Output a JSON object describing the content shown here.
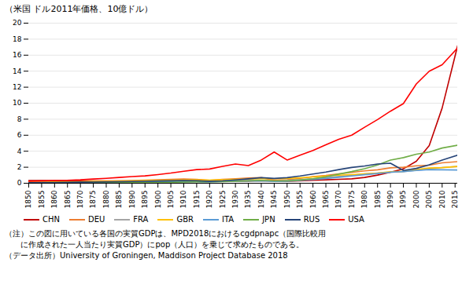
{
  "chart_data": {
    "type": "line",
    "title": "（米国 ドル2011年価格、10億ドル）",
    "annotations": [
      "（注）この図に用いている各国の実質GDPは、MPD2018におけるcgdpnapc（国際比較用",
      "　　に作成された一人当たり実質GDP）にpop（人口）を乗じて求めたものである。",
      "（データ出所）University of Groningen, Maddison Project Database 2018"
    ],
    "x": [
      1850,
      1855,
      1860,
      1865,
      1870,
      1875,
      1880,
      1885,
      1890,
      1895,
      1900,
      1905,
      1910,
      1915,
      1920,
      1925,
      1930,
      1935,
      1940,
      1945,
      1950,
      1955,
      1960,
      1965,
      1970,
      1975,
      1980,
      1985,
      1990,
      1995,
      2000,
      2005,
      2010,
      2016
    ],
    "xlim": [
      1850,
      2016
    ],
    "xticks": [
      1850,
      1855,
      1860,
      1865,
      1870,
      1875,
      1880,
      1885,
      1890,
      1895,
      1900,
      1905,
      1910,
      1915,
      1920,
      1925,
      1930,
      1935,
      1940,
      1945,
      1950,
      1955,
      1960,
      1965,
      1970,
      1975,
      1980,
      1985,
      1990,
      1995,
      2000,
      2005,
      2010,
      2015
    ],
    "ylim": [
      0,
      20
    ],
    "yticks": [
      0,
      2,
      4,
      6,
      8,
      10,
      12,
      14,
      16,
      18,
      20
    ],
    "grid": true,
    "legend": "bottom",
    "series": [
      {
        "name": "CHN",
        "color": "#c00000",
        "values": [
          0.33,
          0.33,
          0.32,
          0.31,
          0.3,
          0.29,
          0.28,
          0.28,
          0.27,
          0.26,
          0.26,
          0.27,
          0.27,
          0.26,
          0.25,
          0.26,
          0.27,
          0.28,
          0.32,
          0.28,
          0.24,
          0.3,
          0.38,
          0.43,
          0.49,
          0.55,
          0.72,
          1.02,
          1.38,
          1.8,
          2.75,
          4.7,
          9.4,
          17.2
        ]
      },
      {
        "name": "DEU",
        "color": "#ed7d31",
        "values": [
          0.09,
          0.11,
          0.13,
          0.15,
          0.17,
          0.21,
          0.25,
          0.28,
          0.33,
          0.38,
          0.44,
          0.49,
          0.54,
          0.49,
          0.37,
          0.48,
          0.55,
          0.65,
          0.7,
          0.38,
          0.43,
          0.61,
          0.82,
          0.97,
          1.18,
          1.35,
          1.55,
          1.68,
          1.92,
          2.0,
          2.18,
          2.25,
          2.55,
          2.7
        ]
      },
      {
        "name": "FRA",
        "color": "#a5a5a5",
        "values": [
          0.08,
          0.09,
          0.1,
          0.11,
          0.12,
          0.14,
          0.16,
          0.17,
          0.19,
          0.21,
          0.24,
          0.26,
          0.29,
          0.25,
          0.24,
          0.32,
          0.38,
          0.37,
          0.36,
          0.27,
          0.36,
          0.45,
          0.57,
          0.7,
          0.86,
          1.0,
          1.16,
          1.26,
          1.38,
          1.44,
          1.62,
          1.78,
          1.96,
          2.1
        ]
      },
      {
        "name": "GBR",
        "color": "#ffc000",
        "values": [
          0.13,
          0.14,
          0.16,
          0.18,
          0.2,
          0.23,
          0.25,
          0.27,
          0.3,
          0.33,
          0.36,
          0.39,
          0.42,
          0.43,
          0.39,
          0.44,
          0.48,
          0.51,
          0.57,
          0.57,
          0.6,
          0.68,
          0.79,
          0.9,
          1.01,
          1.08,
          1.18,
          1.27,
          1.45,
          1.47,
          1.71,
          1.9,
          1.95,
          2.1
        ]
      },
      {
        "name": "ITA",
        "color": "#5b9bd5",
        "values": [
          0.05,
          0.06,
          0.06,
          0.07,
          0.08,
          0.09,
          0.1,
          0.11,
          0.12,
          0.13,
          0.14,
          0.16,
          0.18,
          0.19,
          0.18,
          0.22,
          0.26,
          0.28,
          0.29,
          0.22,
          0.26,
          0.34,
          0.47,
          0.6,
          0.75,
          0.9,
          1.07,
          1.21,
          1.38,
          1.46,
          1.6,
          1.7,
          1.68,
          1.65
        ]
      },
      {
        "name": "JPN",
        "color": "#70ad47",
        "values": [
          0.04,
          0.04,
          0.04,
          0.05,
          0.05,
          0.06,
          0.07,
          0.07,
          0.08,
          0.09,
          0.1,
          0.12,
          0.14,
          0.17,
          0.18,
          0.2,
          0.24,
          0.3,
          0.37,
          0.29,
          0.3,
          0.4,
          0.57,
          0.8,
          1.14,
          1.46,
          1.82,
          2.27,
          2.9,
          3.2,
          3.62,
          3.9,
          4.4,
          4.75
        ]
      },
      {
        "name": "RUS",
        "color": "#264478",
        "values": [
          0.08,
          0.09,
          0.1,
          0.11,
          0.13,
          0.15,
          0.17,
          0.19,
          0.22,
          0.25,
          0.28,
          0.31,
          0.34,
          0.32,
          0.23,
          0.3,
          0.41,
          0.55,
          0.7,
          0.6,
          0.7,
          0.9,
          1.15,
          1.4,
          1.7,
          1.97,
          2.15,
          2.4,
          2.5,
          1.6,
          1.85,
          2.3,
          2.9,
          3.5
        ]
      },
      {
        "name": "USA",
        "color": "#ff0000",
        "values": [
          0.25,
          0.3,
          0.35,
          0.37,
          0.43,
          0.53,
          0.62,
          0.72,
          0.83,
          0.92,
          1.08,
          1.27,
          1.5,
          1.7,
          1.78,
          2.1,
          2.4,
          2.2,
          2.9,
          3.9,
          2.9,
          3.5,
          4.1,
          4.8,
          5.5,
          6.0,
          7.0,
          7.95,
          9.0,
          9.95,
          12.4,
          14.0,
          14.8,
          16.9
        ]
      }
    ]
  }
}
